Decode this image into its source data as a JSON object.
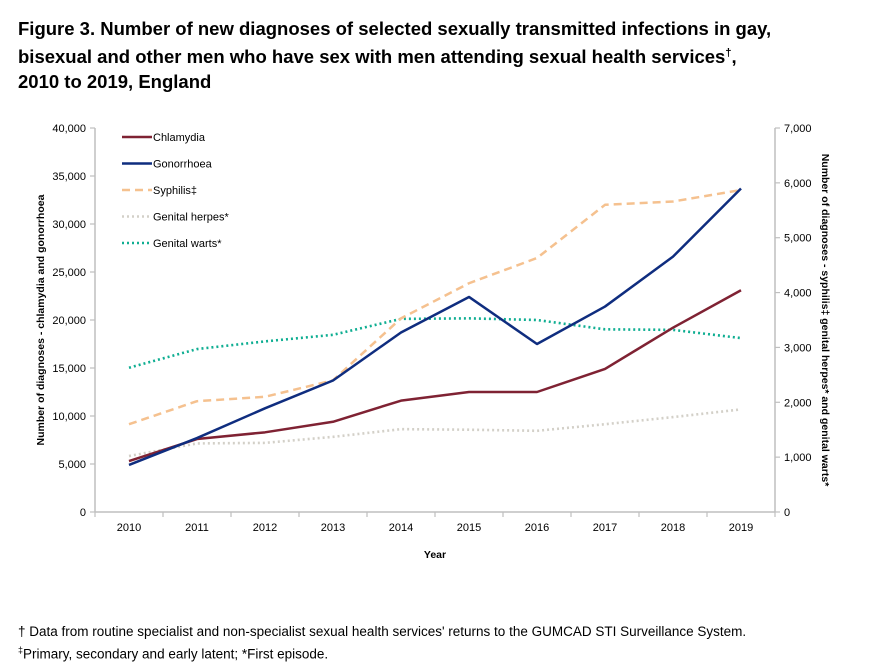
{
  "title": {
    "line1": "Figure 3. Number of new diagnoses of selected sexually transmitted infections in gay,",
    "line2": "bisexual and other men who have sex with men attending sexual health services",
    "line2_mark": "†",
    "line2_end": ",",
    "line3": "2010 to 2019, England"
  },
  "chart_data": {
    "type": "line",
    "title": "Figure 3. Number of new diagnoses of selected sexually transmitted infections in gay, bisexual and other men who have sex with men attending sexual health services†, 2010 to 2019, England",
    "xlabel": "Year",
    "ylabel_left": "Number of diagnoses - chlamydia and gonorrhoea",
    "ylabel_right": "Number of diagnoses - syphilis‡ genital herpes* and genital warts*",
    "categories": [
      "2010",
      "2011",
      "2012",
      "2013",
      "2014",
      "2015",
      "2016",
      "2017",
      "2018",
      "2019"
    ],
    "ylim_left": [
      0,
      40000
    ],
    "ylim_right": [
      0,
      7000
    ],
    "yticks_left": [
      "0",
      "5,000",
      "10,000",
      "15,000",
      "20,000",
      "25,000",
      "30,000",
      "35,000",
      "40,000"
    ],
    "yticks_left_values": [
      0,
      5000,
      10000,
      15000,
      20000,
      25000,
      30000,
      35000,
      40000
    ],
    "yticks_right": [
      "0",
      "1,000",
      "2,000",
      "3,000",
      "4,000",
      "5,000",
      "6,000",
      "7,000"
    ],
    "yticks_right_values": [
      0,
      1000,
      2000,
      3000,
      4000,
      5000,
      6000,
      7000
    ],
    "grid": false,
    "legend_position": "top-left",
    "series": [
      {
        "name": "Chlamydia",
        "axis": "left",
        "color": "#7f2233",
        "style": "solid",
        "values": [
          5300,
          7600,
          8300,
          9400,
          11600,
          12500,
          12500,
          14900,
          19200,
          23100
        ]
      },
      {
        "name": "Gonorrhoea",
        "axis": "left",
        "color": "#0f2d7f",
        "style": "solid",
        "values": [
          4900,
          7700,
          10800,
          13700,
          18700,
          22400,
          17500,
          21400,
          26600,
          33700
        ]
      },
      {
        "name": "Syphilis‡",
        "axis": "right",
        "color": "#f5c18f",
        "style": "dashed",
        "values": [
          1600,
          2020,
          2100,
          2400,
          3530,
          4170,
          4630,
          5600,
          5660,
          5870
        ]
      },
      {
        "name": "Genital herpes*",
        "axis": "right",
        "color": "#d3d0c8",
        "style": "dotted",
        "values": [
          1020,
          1250,
          1260,
          1370,
          1510,
          1500,
          1480,
          1600,
          1730,
          1870
        ]
      },
      {
        "name": "Genital warts*",
        "axis": "right",
        "color": "#0fae92",
        "style": "dotted",
        "values": [
          2630,
          2970,
          3110,
          3230,
          3520,
          3530,
          3500,
          3330,
          3320,
          3170
        ]
      }
    ]
  },
  "footnotes": {
    "line1": "† Data from routine specialist and non-specialist sexual health services' returns to the GUMCAD STI Surveillance System.",
    "line2_mark": "‡",
    "line2": "Primary, secondary and early latent; *First episode."
  }
}
